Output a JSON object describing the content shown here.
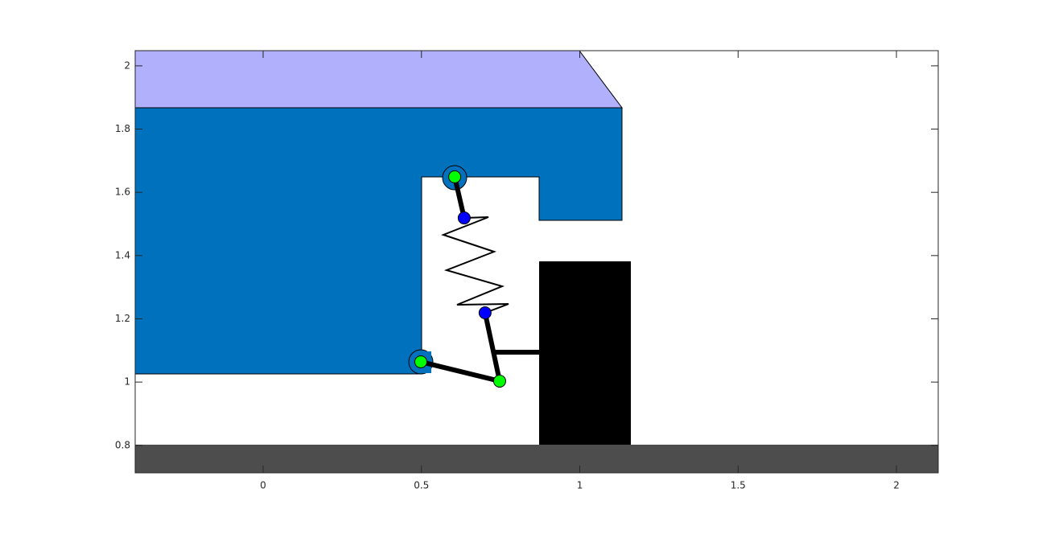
{
  "chart_data": {
    "type": "scatter",
    "xlim": [
      -0.404,
      2.132
    ],
    "ylim": [
      0.713,
      2.048
    ],
    "xticks": [
      0,
      0.5,
      1,
      1.5,
      2
    ],
    "yticks": [
      0.8,
      1,
      1.2,
      1.4,
      1.6,
      1.8,
      2
    ],
    "series": [
      {
        "color": "#00ff00",
        "x": [
          0.605,
          0.498,
          0.747
        ],
        "y": [
          1.649,
          1.064,
          1.003
        ]
      },
      {
        "color": "#0000ff",
        "x": [
          0.635,
          0.701
        ],
        "y": [
          1.519,
          1.219
        ]
      }
    ]
  }
}
